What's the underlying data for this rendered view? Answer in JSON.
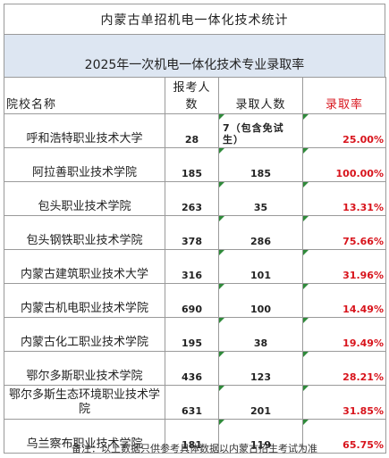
{
  "title": "内蒙古单招机电一体化技术统计",
  "subtitle": "2025年一次机电一体化技术专业录取率",
  "headers": {
    "name": "院校名称",
    "apply": "报考人数",
    "admit": "录取人数",
    "rate": "录取率"
  },
  "rows": [
    {
      "name": "呼和浩特职业技术大学",
      "apply": "28",
      "admit": "7（包含免试生）",
      "rate": "25.00%"
    },
    {
      "name": "阿拉善职业技术学院",
      "apply": "185",
      "admit": "185",
      "rate": "100.00%"
    },
    {
      "name": "包头职业技术学院",
      "apply": "263",
      "admit": "35",
      "rate": "13.31%"
    },
    {
      "name": "包头钢铁职业技术学院",
      "apply": "378",
      "admit": "286",
      "rate": "75.66%"
    },
    {
      "name": "内蒙古建筑职业技术大学",
      "apply": "316",
      "admit": "101",
      "rate": "31.96%"
    },
    {
      "name": "内蒙古机电职业技术学院",
      "apply": "690",
      "admit": "100",
      "rate": "14.49%"
    },
    {
      "name": "内蒙古化工职业技术学院",
      "apply": "195",
      "admit": "38",
      "rate": "19.49%"
    },
    {
      "name": "鄂尔多斯职业技术学院",
      "apply": "436",
      "admit": "123",
      "rate": "28.21%"
    },
    {
      "name": "鄂尔多斯生态环境职业技术学院",
      "apply": "631",
      "admit": "201",
      "rate": "31.85%"
    },
    {
      "name": "乌兰察布职业技术学院",
      "apply": "181",
      "admit": "119",
      "rate": "65.75%"
    }
  ],
  "footer": "备注：以上数据只供参考具体数据以内蒙古招生考试为准",
  "colors": {
    "header_band": "#dde6f2",
    "rate_red": "#d8141c",
    "grid_line": "#9a9a9a",
    "cell_marker": "#2f8a3a"
  }
}
